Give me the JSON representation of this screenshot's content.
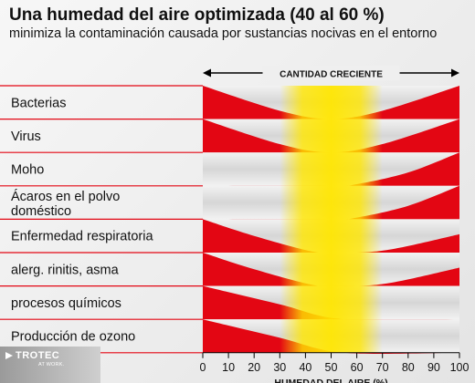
{
  "header": {
    "title": "Una humedad del aire optimizada (40 al 60 %)",
    "subtitle": "minimiza la contaminación causada por sustancias nocivas en el entorno"
  },
  "brand": {
    "name": "TROTEC",
    "tagline": "AT WORK."
  },
  "colors": {
    "band_red": "#e30613",
    "optimal_yellow": "#ffe600",
    "row_gray": "#d9d9d9",
    "row_separator": "#e30613"
  },
  "chart_data": {
    "type": "area",
    "title": "Una humedad del aire optimizada (40 al 60 %)",
    "top_label": "CANTIDAD CRECIENTE",
    "xlabel": "HUMEDAD DEL AIRE (%)",
    "xlim": [
      0,
      100
    ],
    "xticks": [
      "0",
      "10",
      "20",
      "30",
      "40",
      "50",
      "60",
      "70",
      "80",
      "90",
      "100"
    ],
    "optimal_range": [
      40,
      60
    ],
    "series": [
      {
        "name": "Bacterias",
        "points": [
          [
            0,
            1.0
          ],
          [
            30,
            0.25
          ],
          [
            50,
            0.0
          ],
          [
            70,
            0.25
          ],
          [
            100,
            1.0
          ]
        ]
      },
      {
        "name": "Virus",
        "points": [
          [
            0,
            1.0
          ],
          [
            30,
            0.25
          ],
          [
            50,
            0.0
          ],
          [
            70,
            0.25
          ],
          [
            100,
            1.0
          ]
        ]
      },
      {
        "name": "Moho",
        "points": [
          [
            0,
            0.0
          ],
          [
            50,
            0.0
          ],
          [
            60,
            0.05
          ],
          [
            80,
            0.4
          ],
          [
            100,
            1.0
          ]
        ]
      },
      {
        "name": "Ácaros en el polvo doméstico",
        "points": [
          [
            0,
            0.0
          ],
          [
            50,
            0.0
          ],
          [
            60,
            0.05
          ],
          [
            80,
            0.4
          ],
          [
            100,
            1.0
          ]
        ]
      },
      {
        "name": "Enfermedad respiratoria",
        "points": [
          [
            0,
            1.0
          ],
          [
            20,
            0.5
          ],
          [
            45,
            0.0
          ],
          [
            60,
            0.0
          ],
          [
            75,
            0.12
          ],
          [
            100,
            0.55
          ]
        ]
      },
      {
        "name": "alerg. rinitis, asma",
        "points": [
          [
            0,
            1.0
          ],
          [
            20,
            0.5
          ],
          [
            45,
            0.0
          ],
          [
            60,
            0.0
          ],
          [
            75,
            0.12
          ],
          [
            100,
            0.55
          ]
        ]
      },
      {
        "name": "procesos químicos",
        "points": [
          [
            0,
            1.0
          ],
          [
            30,
            0.45
          ],
          [
            55,
            0.0
          ],
          [
            100,
            0.0
          ]
        ]
      },
      {
        "name": "Producción de ozono",
        "points": [
          [
            0,
            1.0
          ],
          [
            30,
            0.45
          ],
          [
            55,
            0.0
          ],
          [
            100,
            0.0
          ]
        ]
      }
    ]
  }
}
